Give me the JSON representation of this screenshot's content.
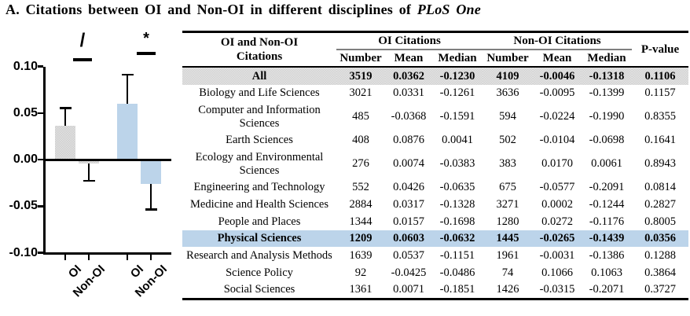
{
  "title": {
    "text_before_italic": "A. Citations between OI and Non-OI in different disciplines of ",
    "italic_text": "PLoS One"
  },
  "chart_data": {
    "type": "bar",
    "title": "",
    "xlabel": "",
    "ylabel": "",
    "ylim": [
      -0.1,
      0.1
    ],
    "yticks": [
      0.1,
      0.05,
      0.0,
      -0.05,
      -0.1
    ],
    "ytick_labels": [
      "0.10",
      "0.05",
      "0.00",
      "-0.05",
      "-0.10"
    ],
    "grid": false,
    "legend": "none",
    "categories": [
      "OI",
      "Non-OI",
      "OI",
      "Non-OI"
    ],
    "bars": [
      {
        "group": "All",
        "label": "OI",
        "value": 0.0362,
        "error": 0.019,
        "error_direction": "up",
        "color": "gray"
      },
      {
        "group": "All",
        "label": "Non-OI",
        "value": -0.0046,
        "error": 0.018,
        "error_direction": "down",
        "color": "gray"
      },
      {
        "group": "Physical Sciences",
        "label": "OI",
        "value": 0.0603,
        "error": 0.031,
        "error_direction": "up",
        "color": "blue"
      },
      {
        "group": "Physical Sciences",
        "label": "Non-OI",
        "value": -0.0265,
        "error": 0.027,
        "error_direction": "down",
        "color": "blue"
      }
    ],
    "significance": [
      {
        "symbol": "/",
        "between": [
          "All OI",
          "All Non-OI"
        ]
      },
      {
        "symbol": "*",
        "between": [
          "Physical Sciences OI",
          "Physical Sciences Non-OI"
        ]
      }
    ],
    "colors": {
      "gray": "#d8d8d8",
      "blue": "#bcd4ea"
    }
  },
  "table": {
    "header": {
      "col1_lines": [
        "OI and Non-OI",
        "Citations"
      ],
      "group1": "OI Citations",
      "group2": "Non-OI Citations",
      "pvalue": "P-value",
      "subcols": [
        "Number",
        "Mean",
        "Median",
        "Number",
        "Mean",
        "Median"
      ]
    },
    "rows": [
      {
        "name": "All",
        "values": [
          "3519",
          "0.0362",
          "-0.1230",
          "4109",
          "-0.0046",
          "-0.1318",
          "0.1106"
        ],
        "highlight": "gray"
      },
      {
        "name": "Biology and Life Sciences",
        "values": [
          "3021",
          "0.0331",
          "-0.1261",
          "3636",
          "-0.0095",
          "-0.1399",
          "0.1157"
        ],
        "highlight": ""
      },
      {
        "name": "Computer and Information Sciences",
        "values": [
          "485",
          "-0.0368",
          "-0.1591",
          "594",
          "-0.0224",
          "-0.1990",
          "0.8355"
        ],
        "highlight": ""
      },
      {
        "name": "Earth Sciences",
        "values": [
          "408",
          "0.0876",
          "0.0041",
          "502",
          "-0.0104",
          "-0.0698",
          "0.1641"
        ],
        "highlight": ""
      },
      {
        "name": "Ecology and Environmental Sciences",
        "values": [
          "276",
          "0.0074",
          "-0.0383",
          "383",
          "0.0170",
          "0.0061",
          "0.8943"
        ],
        "highlight": ""
      },
      {
        "name": "Engineering and Technology",
        "values": [
          "552",
          "0.0426",
          "-0.0635",
          "675",
          "-0.0577",
          "-0.2091",
          "0.0814"
        ],
        "highlight": ""
      },
      {
        "name": "Medicine and Health Sciences",
        "values": [
          "2884",
          "0.0317",
          "-0.1328",
          "3271",
          "0.0002",
          "-0.1244",
          "0.2827"
        ],
        "highlight": ""
      },
      {
        "name": "People and Places",
        "values": [
          "1344",
          "0.0157",
          "-0.1698",
          "1280",
          "0.0272",
          "-0.1176",
          "0.8005"
        ],
        "highlight": ""
      },
      {
        "name": "Physical Sciences",
        "values": [
          "1209",
          "0.0603",
          "-0.0632",
          "1445",
          "-0.0265",
          "-0.1439",
          "0.0356"
        ],
        "highlight": "blue"
      },
      {
        "name": "Research and Analysis Methods",
        "values": [
          "1639",
          "0.0537",
          "-0.1151",
          "1961",
          "-0.0031",
          "-0.1386",
          "0.1288"
        ],
        "highlight": ""
      },
      {
        "name": "Science Policy",
        "values": [
          "92",
          "-0.0425",
          "-0.0486",
          "74",
          "0.1066",
          "0.1063",
          "0.3864"
        ],
        "highlight": ""
      },
      {
        "name": "Social Sciences",
        "values": [
          "1361",
          "0.0071",
          "-0.1851",
          "1426",
          "-0.0315",
          "-0.2071",
          "0.3727"
        ],
        "highlight": ""
      }
    ]
  }
}
